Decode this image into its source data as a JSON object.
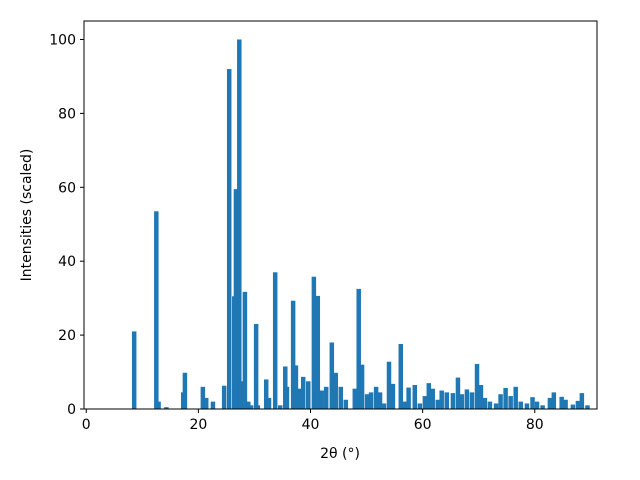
{
  "chart_data": {
    "type": "bar",
    "xlabel": "2θ (°)",
    "ylabel": "Intensities (scaled)",
    "color": "#1f77b4",
    "x": [
      8.55,
      12.5,
      12.9,
      14.3,
      17.3,
      17.6,
      20.8,
      21.4,
      22.6,
      24.6,
      25.5,
      26.4,
      26.7,
      27.3,
      27.6,
      28.3,
      28.9,
      29.4,
      30.3,
      30.6,
      32.1,
      32.6,
      33.7,
      34.6,
      35.5,
      35.8,
      36.9,
      37.4,
      38.1,
      38.7,
      39.6,
      40.6,
      41.3,
      42.0,
      42.8,
      43.8,
      44.5,
      45.4,
      46.3,
      47.9,
      48.6,
      49.2,
      50.1,
      50.8,
      51.7,
      52.4,
      53.1,
      54.0,
      54.7,
      56.1,
      56.8,
      57.5,
      58.6,
      59.5,
      60.4,
      61.1,
      61.8,
      62.7,
      63.4,
      64.3,
      65.4,
      66.3,
      67.0,
      67.9,
      68.8,
      69.7,
      70.4,
      71.1,
      72.0,
      73.1,
      73.9,
      74.8,
      75.7,
      76.6,
      77.5,
      78.6,
      79.6,
      80.4,
      81.4,
      82.7,
      83.4,
      84.8,
      85.5,
      86.8,
      87.7,
      88.4,
      89.4
    ],
    "values": [
      21,
      53.5,
      2,
      0.5,
      4.5,
      9.8,
      6,
      3,
      2,
      6.3,
      92,
      30.5,
      59.5,
      100,
      7.5,
      31.7,
      2,
      1,
      23,
      1,
      8,
      3,
      37,
      1,
      11.5,
      6,
      29.3,
      11.8,
      5.5,
      8.7,
      7.5,
      35.8,
      30.6,
      5,
      6,
      18,
      9.8,
      6,
      2.5,
      5.5,
      32.5,
      12,
      4,
      4.5,
      6,
      4.5,
      1.5,
      12.8,
      6.8,
      17.6,
      2,
      5.8,
      6.5,
      1.5,
      3.5,
      7,
      5.5,
      2.5,
      5,
      4.5,
      4.3,
      8.5,
      4,
      5.3,
      4.5,
      12.2,
      6.5,
      3,
      2,
      1.5,
      4,
      5.7,
      3.5,
      6,
      2,
      1.5,
      3.2,
      2,
      1,
      3,
      4.5,
      3.3,
      2.5,
      1.2,
      2.2,
      4.3,
      1
    ],
    "xlim": [
      -0.4,
      91.1
    ],
    "ylim": [
      0,
      105
    ],
    "xticks": [
      0,
      20,
      40,
      60,
      80
    ],
    "yticks": [
      0,
      20,
      40,
      60,
      80,
      100
    ]
  }
}
